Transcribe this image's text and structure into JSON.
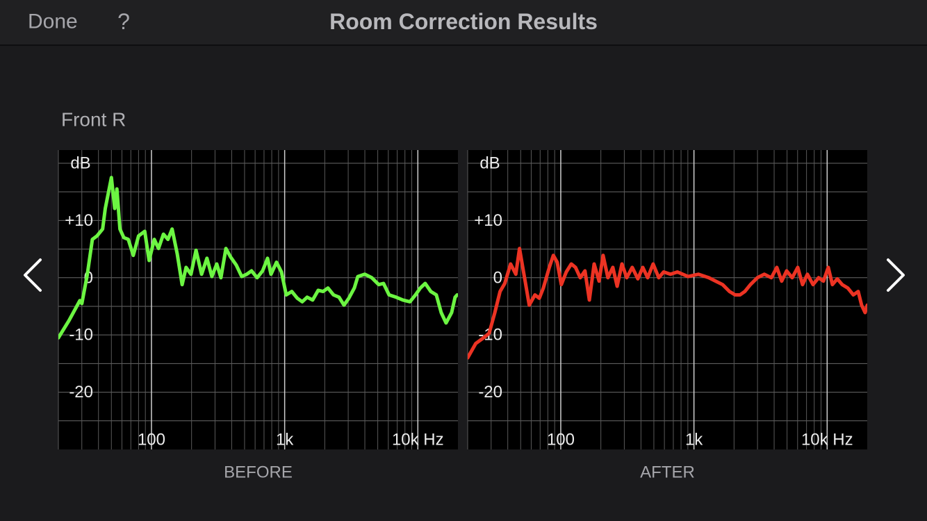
{
  "header": {
    "done": "Done",
    "help": "?",
    "title": "Room Correction Results"
  },
  "section_label": "Front R",
  "chart_data": [
    {
      "type": "line",
      "caption": "BEFORE",
      "y_label": "dB",
      "x_scale": "log",
      "grid": true,
      "color": "#6cf542",
      "xlim": [
        20,
        20000
      ],
      "ylim": [
        -30,
        22.3
      ],
      "xticks": [
        {
          "value": 100,
          "label": "100"
        },
        {
          "value": 1000,
          "label": "1k"
        },
        {
          "value": 10000,
          "label": "10k Hz"
        }
      ],
      "minor_xticks": [
        20,
        30,
        40,
        50,
        60,
        70,
        80,
        90,
        200,
        300,
        400,
        500,
        600,
        700,
        800,
        900,
        2000,
        3000,
        4000,
        5000,
        6000,
        7000,
        8000,
        9000
      ],
      "yticks": [
        {
          "value": 10,
          "label": "+10"
        },
        0,
        -10,
        -20
      ],
      "minor_yticks": [
        20,
        15,
        5,
        -5,
        -15,
        -25
      ],
      "x": [
        20,
        24,
        29,
        30,
        33,
        36,
        39,
        43,
        45,
        50,
        53,
        55,
        58,
        62,
        67,
        73,
        80,
        89,
        96,
        105,
        113,
        123,
        133,
        143,
        156,
        170,
        182,
        198,
        216,
        238,
        261,
        284,
        309,
        332,
        362,
        393,
        433,
        476,
        519,
        564,
        621,
        683,
        744,
        790,
        869,
        946,
        1028,
        1131,
        1246,
        1355,
        1475,
        1623,
        1786,
        1943,
        2114,
        2327,
        2562,
        2787,
        3031,
        3337,
        3541,
        3995,
        4508,
        5082,
        5525,
        6083,
        6857,
        7733,
        8722,
        9597,
        10443,
        11359,
        12502,
        13772,
        14966,
        16291,
        17938,
        19046,
        19729
      ],
      "values": [
        -10.5,
        -7.5,
        -4,
        -4.5,
        0.6,
        6.7,
        7.3,
        8.5,
        12.1,
        17.5,
        12.1,
        15.5,
        8.5,
        7,
        6.7,
        3.9,
        7.3,
        8.1,
        3,
        6.7,
        5.1,
        7.6,
        6.7,
        8.5,
        4.2,
        -1.2,
        1.8,
        0.6,
        4.8,
        0.6,
        3.4,
        0.2,
        2.4,
        0,
        5.1,
        3.6,
        2.2,
        0.2,
        0.6,
        1.2,
        0,
        1.2,
        3.4,
        0.6,
        2.7,
        1,
        -3,
        -2.4,
        -3.6,
        -4.2,
        -3.4,
        -3.9,
        -2.2,
        -2.4,
        -1.8,
        -3,
        -3.4,
        -4.8,
        -3.6,
        -1.8,
        0.2,
        0.6,
        0,
        -1.2,
        -1,
        -3,
        -3.4,
        -3.9,
        -4.2,
        -3,
        -1.8,
        -1,
        -2.4,
        -3,
        -6.1,
        -7.9,
        -6.1,
        -3.4,
        -3
      ]
    },
    {
      "type": "line",
      "caption": "AFTER",
      "y_label": "dB",
      "x_scale": "log",
      "grid": true,
      "color": "#ec3323",
      "xlim": [
        20,
        20000
      ],
      "ylim": [
        -30,
        22.3
      ],
      "xticks": [
        {
          "value": 100,
          "label": "100"
        },
        {
          "value": 1000,
          "label": "1k"
        },
        {
          "value": 10000,
          "label": "10k Hz"
        }
      ],
      "minor_xticks": [
        20,
        30,
        40,
        50,
        60,
        70,
        80,
        90,
        200,
        300,
        400,
        500,
        600,
        700,
        800,
        900,
        2000,
        3000,
        4000,
        5000,
        6000,
        7000,
        8000,
        9000
      ],
      "yticks": [
        {
          "value": 10,
          "label": "+10"
        },
        0,
        -10,
        -20
      ],
      "minor_yticks": [
        20,
        15,
        5,
        -5,
        -15,
        -25
      ],
      "x": [
        20,
        23,
        27,
        29,
        32,
        35,
        38,
        42,
        46,
        49,
        54,
        58,
        64,
        69,
        74,
        82,
        88,
        94,
        101,
        110,
        120,
        129,
        140,
        152,
        164,
        178,
        194,
        208,
        226,
        246,
        265,
        288,
        313,
        344,
        379,
        413,
        449,
        494,
        544,
        592,
        667,
        752,
        902,
        1079,
        1292,
        1456,
        1641,
        1850,
        2037,
        2218,
        2411,
        2655,
        2993,
        3378,
        3811,
        4192,
        4560,
        4961,
        5462,
        6013,
        6539,
        7113,
        7832,
        8622,
        9380,
        10197,
        10962,
        11922,
        12971,
        14282,
        15723,
        17101,
        18155,
        19276,
        20000
      ],
      "values": [
        -14,
        -11.5,
        -10.3,
        -9.7,
        -6.1,
        -2.4,
        -1,
        2.4,
        0.6,
        5.1,
        -0.6,
        -4.8,
        -3,
        -3.6,
        -1.8,
        1.8,
        3.9,
        2.7,
        -1.2,
        1,
        2.4,
        1.8,
        0,
        1.2,
        -3.9,
        2.4,
        -0.6,
        3.9,
        0,
        1.8,
        -1.5,
        2.4,
        0,
        1.8,
        -0.2,
        1.8,
        0,
        2.4,
        0,
        1,
        0.6,
        1,
        0.2,
        0.6,
        0,
        -0.6,
        -1.2,
        -2.4,
        -3,
        -3,
        -2.4,
        -1.2,
        0,
        0.6,
        0,
        1.8,
        -0.6,
        1.2,
        0,
        1.8,
        -1.2,
        0.6,
        -1.2,
        0,
        -0.6,
        1.8,
        -1.2,
        -0.2,
        -1.2,
        -1.8,
        -3,
        -2.4,
        -4.8,
        -6.1,
        -4.8
      ]
    }
  ]
}
